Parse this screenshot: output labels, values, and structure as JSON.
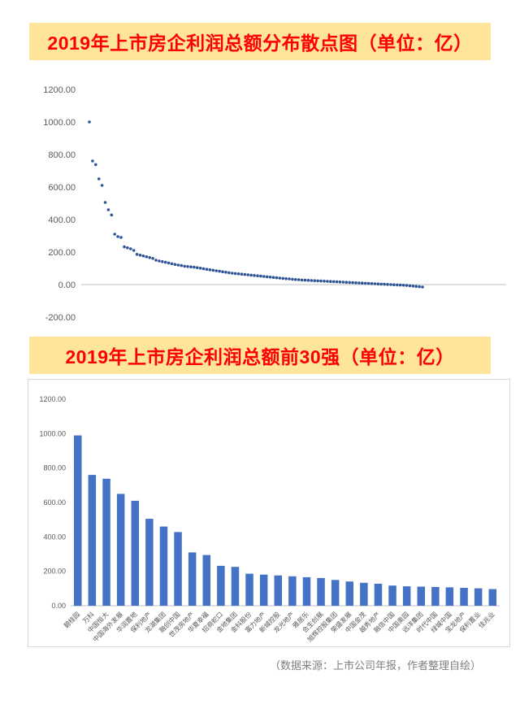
{
  "colors": {
    "banner_bg": "#FFE599",
    "title_red": "#FF0000",
    "point_blue": "#2F5496",
    "bar_blue": "#4472C4",
    "axis_text": "#595959",
    "axis_line": "#BFBFBF",
    "chart_border": "#D9D9D9",
    "footer_text": "#7F7F7F"
  },
  "footer": {
    "text": "（数据来源：上市公司年报，作者整理自绘）"
  },
  "chart_data": [
    {
      "type": "scatter",
      "title": "2019年上市房企利润总额分布散点图（单位：亿）",
      "xlabel": "",
      "ylabel": "",
      "ylim": [
        -200,
        1200
      ],
      "yticks": [
        1200,
        1000,
        800,
        600,
        400,
        200,
        0,
        -200
      ],
      "grid": false,
      "legend": "none",
      "values": [
        1000,
        760,
        738,
        650,
        610,
        505,
        460,
        428,
        310,
        295,
        290,
        232,
        226,
        220,
        210,
        186,
        181,
        176,
        171,
        166,
        161,
        150,
        145,
        141,
        137,
        133,
        128,
        124,
        120,
        117,
        113,
        111,
        109,
        107,
        104,
        101,
        97,
        94,
        91,
        88,
        85,
        82,
        79,
        76,
        73,
        70,
        68,
        66,
        64,
        62,
        60,
        58,
        56,
        54,
        52,
        50,
        48,
        46,
        44,
        42,
        40,
        38,
        36,
        35,
        33,
        31,
        30,
        28,
        27,
        26,
        25,
        24,
        23,
        22,
        21,
        20,
        19,
        18,
        17,
        16,
        15,
        14,
        13,
        12,
        11,
        10,
        9,
        8,
        7,
        6,
        5,
        4,
        3,
        2,
        1,
        0,
        -1,
        -2,
        -3,
        -4,
        -5,
        -7,
        -9,
        -11,
        -13,
        -15
      ]
    },
    {
      "type": "bar",
      "title": "2019年上市房企利润总额前30强（单位：亿）",
      "xlabel": "",
      "ylabel": "",
      "ylim": [
        0,
        1200
      ],
      "yticks": [
        0,
        200,
        400,
        600,
        800,
        1000,
        1200
      ],
      "grid": false,
      "legend": "none",
      "categories": [
        "碧桂园",
        "万科",
        "中国恒大",
        "中国海外发展",
        "华润置地",
        "保利地产",
        "龙湖集团",
        "融创中国",
        "世茂房地产",
        "华夏幸福",
        "招商蛇口",
        "金地集团",
        "金科股份",
        "富力地产",
        "新城控股",
        "龙光地产",
        "雅居乐",
        "合生创展",
        "旭辉控股集团",
        "荣盛发展",
        "中国金茂",
        "越秀地产",
        "融信中国",
        "中国奥园",
        "远洋集团",
        "时代中国",
        "绿城中国",
        "宝龙地产",
        "保利置业",
        "佳兆业"
      ],
      "values": [
        990,
        760,
        738,
        650,
        610,
        505,
        460,
        428,
        310,
        295,
        232,
        226,
        186,
        181,
        176,
        171,
        166,
        161,
        150,
        141,
        133,
        128,
        117,
        113,
        111,
        109,
        107,
        104,
        101,
        97
      ]
    }
  ]
}
